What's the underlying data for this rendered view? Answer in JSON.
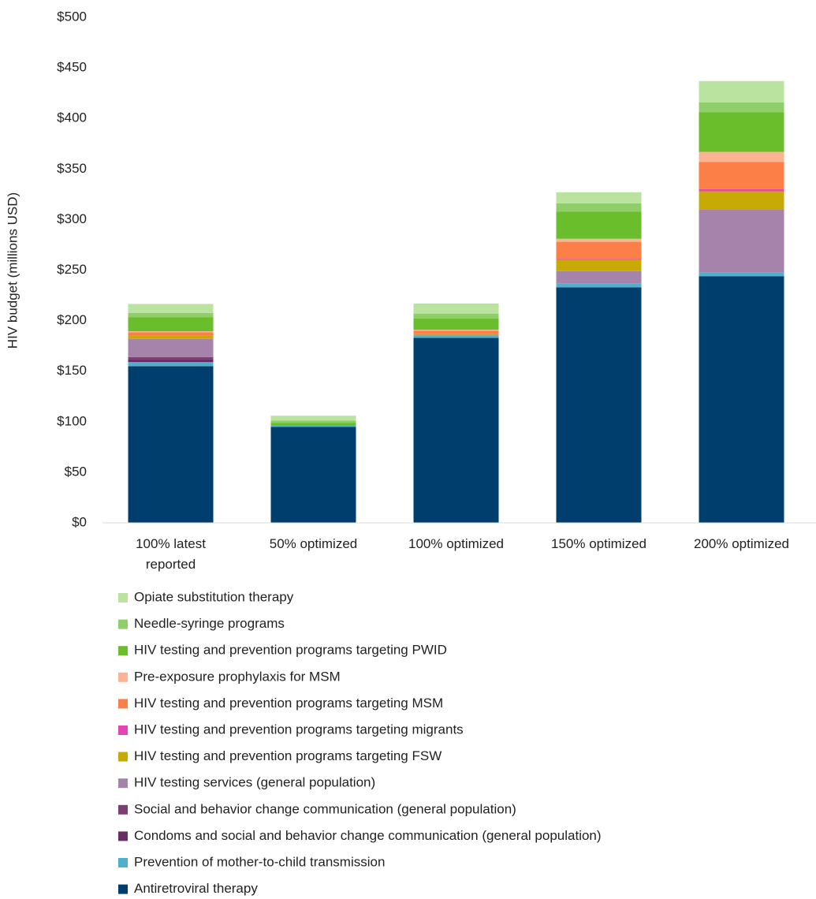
{
  "chart_data": {
    "type": "stacked_bar",
    "y_label": "HIV budget (millions USD)",
    "categories": [
      "100% latest reported",
      "50% optimized",
      "100% optimized",
      "150% optimized",
      "200% optimized"
    ],
    "ylim": [
      0,
      500
    ],
    "yticks": [
      {
        "value": 0,
        "label": "$0"
      },
      {
        "value": 50,
        "label": "$50"
      },
      {
        "value": 100,
        "label": "$100"
      },
      {
        "value": 150,
        "label": "$150"
      },
      {
        "value": 200,
        "label": "$200"
      },
      {
        "value": 250,
        "label": "$250"
      },
      {
        "value": 300,
        "label": "$300"
      },
      {
        "value": 350,
        "label": "$350"
      },
      {
        "value": 400,
        "label": "$400"
      },
      {
        "value": 450,
        "label": "$450"
      },
      {
        "value": 500,
        "label": "$500"
      }
    ],
    "grid": false,
    "series": [
      {
        "name": "Antiretroviral therapy",
        "color": "#003e6d",
        "values": [
          155,
          95,
          183,
          233,
          244
        ]
      },
      {
        "name": "Prevention of mother-to-child transmission",
        "color": "#4fb0ce",
        "values": [
          4,
          1,
          2,
          4,
          4
        ]
      },
      {
        "name": "Condoms and social and behavior change communication (general population)",
        "color": "#6a2c64",
        "values": [
          3,
          0,
          0,
          0,
          0
        ]
      },
      {
        "name": "Social and behavior change communication (general population)",
        "color": "#7d3c73",
        "values": [
          2,
          0,
          0,
          0,
          0
        ]
      },
      {
        "name": "HIV testing services (general population)",
        "color": "#a683aa",
        "values": [
          18,
          0,
          1,
          12,
          62
        ]
      },
      {
        "name": "HIV testing and prevention programs targeting FSW",
        "color": "#c8aa07",
        "values": [
          3,
          0,
          1,
          11,
          18
        ]
      },
      {
        "name": "HIV testing and prevention programs targeting migrants",
        "color": "#e545b4",
        "values": [
          0.5,
          0,
          0,
          1,
          2
        ]
      },
      {
        "name": "HIV testing and prevention programs targeting MSM",
        "color": "#fb7f46",
        "values": [
          3,
          0,
          3,
          17,
          27
        ]
      },
      {
        "name": "Pre-exposure prophylaxis for MSM",
        "color": "#fcb394",
        "values": [
          1,
          0,
          1,
          3,
          10
        ]
      },
      {
        "name": "HIV testing and prevention programs targeting PWID",
        "color": "#6abe2b",
        "values": [
          14,
          3,
          11,
          27,
          39
        ]
      },
      {
        "name": "Needle-syringe programs",
        "color": "#8fce6a",
        "values": [
          4,
          2,
          5,
          8,
          10
        ]
      },
      {
        "name": "Opiate substitution therapy",
        "color": "#b9e39e",
        "values": [
          9,
          5,
          10,
          11,
          21
        ]
      }
    ]
  }
}
